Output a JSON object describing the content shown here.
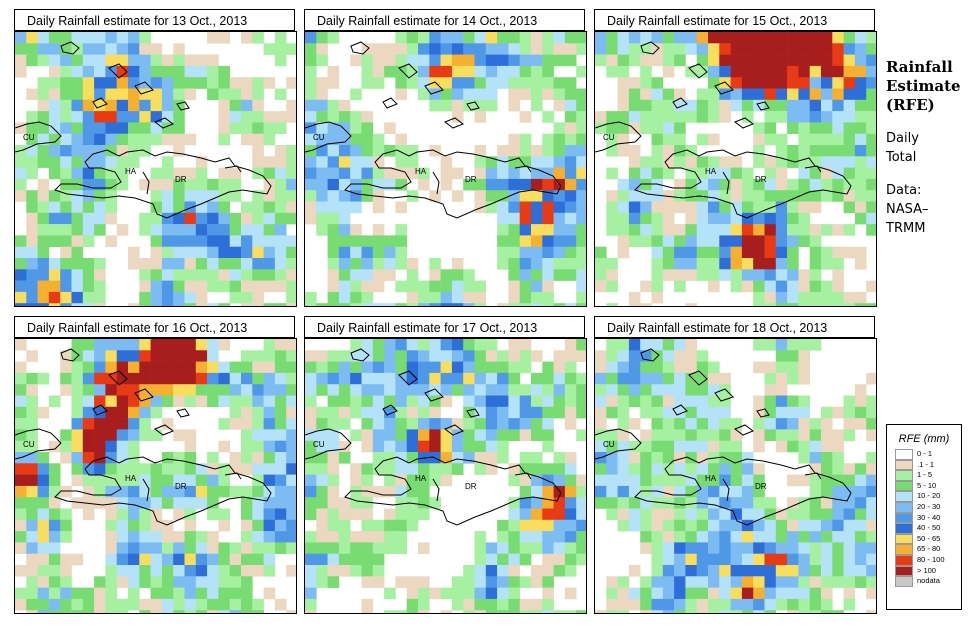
{
  "panels": [
    {
      "title": "Daily Rainfall estimate for  13 Oct., 2013",
      "date": "2013-10-13"
    },
    {
      "title": "Daily Rainfall estimate for  14 Oct., 2013",
      "date": "2013-10-14"
    },
    {
      "title": "Daily Rainfall estimate for  15 Oct., 2013",
      "date": "2013-10-15"
    },
    {
      "title": "Daily Rainfall estimate for  16 Oct., 2013",
      "date": "2013-10-16"
    },
    {
      "title": "Daily Rainfall estimate for  17 Oct., 2013",
      "date": "2013-10-17"
    },
    {
      "title": "Daily Rainfall estimate for  18 Oct., 2013",
      "date": "2013-10-18"
    }
  ],
  "map_labels": {
    "cuba": "CU",
    "haiti": "HA",
    "dominican_republic": "DR"
  },
  "side": {
    "title_line1": "Rainfall",
    "title_line2": "Estimate",
    "title_line3": "(RFE)",
    "daily1": "Daily",
    "daily2": "Total",
    "data1": "Data:",
    "data2": "NASA–",
    "data3": "TRMM"
  },
  "legend": {
    "title": "RFE (mm)",
    "items": [
      {
        "label": "0 - 1",
        "color": "#ffffff"
      },
      {
        "label": ".1 - 1",
        "color": "#ecd8c0"
      },
      {
        "label": "1 - 5",
        "color": "#a6f0a2"
      },
      {
        "label": "5 - 10",
        "color": "#79dc73"
      },
      {
        "label": "10 - 20",
        "color": "#b4e2f8"
      },
      {
        "label": "20 - 30",
        "color": "#7dbcf2"
      },
      {
        "label": "30 - 40",
        "color": "#4f98e8"
      },
      {
        "label": "40 - 50",
        "color": "#2e6ed8"
      },
      {
        "label": "50 - 65",
        "color": "#f9dd5c"
      },
      {
        "label": "65 - 80",
        "color": "#f6b030"
      },
      {
        "label": "80 - 100",
        "color": "#e83a14"
      },
      {
        "label": "> 100",
        "color": "#a81e1e"
      },
      {
        "label": "nodata",
        "color": "#c8c8c8"
      }
    ]
  }
}
